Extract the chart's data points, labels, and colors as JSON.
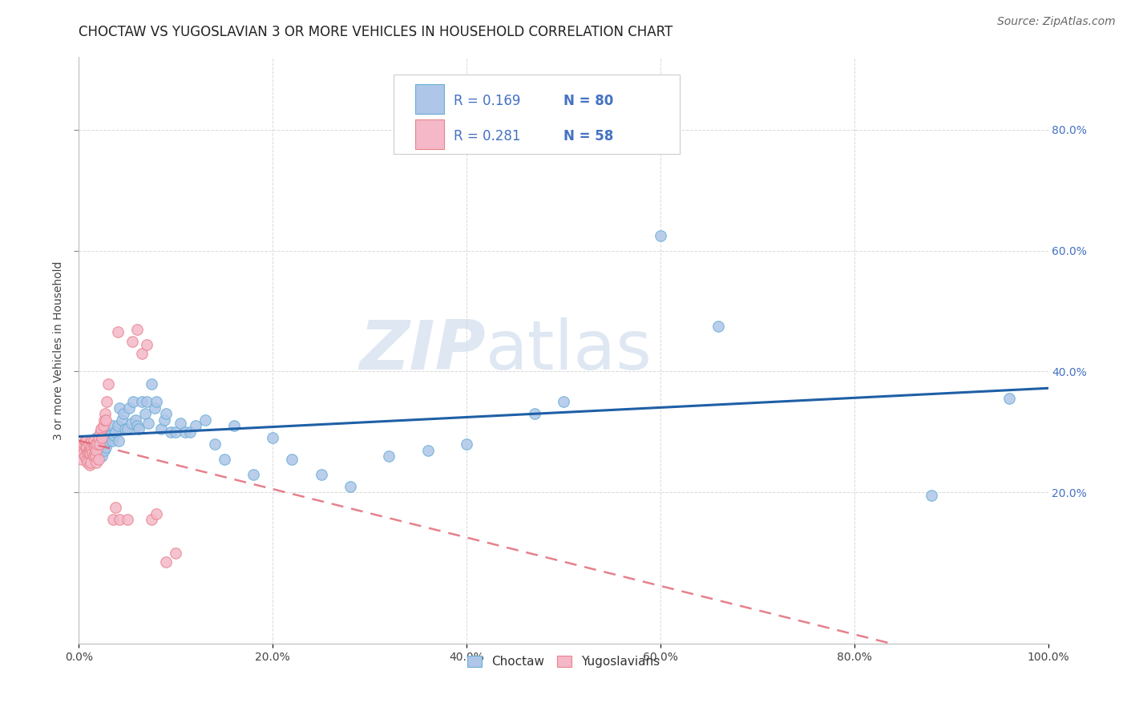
{
  "title": "CHOCTAW VS YUGOSLAVIAN 3 OR MORE VEHICLES IN HOUSEHOLD CORRELATION CHART",
  "source": "Source: ZipAtlas.com",
  "ylabel": "3 or more Vehicles in Household",
  "xlim": [
    0.0,
    1.0
  ],
  "ylim": [
    -0.05,
    0.92
  ],
  "xtick_vals": [
    0.0,
    0.2,
    0.4,
    0.6,
    0.8,
    1.0
  ],
  "xtick_labels": [
    "0.0%",
    "20.0%",
    "40.0%",
    "60.0%",
    "80.0%",
    "100.0%"
  ],
  "ytick_vals": [
    0.2,
    0.4,
    0.6,
    0.8
  ],
  "ytick_labels": [
    "20.0%",
    "40.0%",
    "60.0%",
    "80.0%"
  ],
  "choctaw_color": "#aec6e8",
  "choctaw_edge": "#6aaed6",
  "yugoslav_color": "#f4b8c8",
  "yugoslav_edge": "#e8848e",
  "trend_choctaw_color": "#1f5fa6",
  "trend_yugoslav_color": "#e06070",
  "legend_r1": "R = 0.169",
  "legend_n1": "N = 80",
  "legend_r2": "R = 0.281",
  "legend_n2": "N = 58",
  "watermark_zip": "ZIP",
  "watermark_atlas": "atlas",
  "choctaw_x": [
    0.005,
    0.008,
    0.01,
    0.012,
    0.015,
    0.015,
    0.016,
    0.018,
    0.018,
    0.02,
    0.02,
    0.021,
    0.022,
    0.023,
    0.024,
    0.024,
    0.025,
    0.025,
    0.026,
    0.026,
    0.027,
    0.028,
    0.028,
    0.029,
    0.03,
    0.03,
    0.031,
    0.032,
    0.033,
    0.034,
    0.035,
    0.036,
    0.038,
    0.04,
    0.041,
    0.042,
    0.044,
    0.046,
    0.048,
    0.05,
    0.052,
    0.054,
    0.056,
    0.058,
    0.06,
    0.062,
    0.065,
    0.068,
    0.07,
    0.072,
    0.075,
    0.078,
    0.08,
    0.085,
    0.088,
    0.09,
    0.095,
    0.1,
    0.105,
    0.11,
    0.115,
    0.12,
    0.13,
    0.14,
    0.15,
    0.16,
    0.18,
    0.2,
    0.22,
    0.25,
    0.28,
    0.32,
    0.36,
    0.4,
    0.47,
    0.5,
    0.6,
    0.66,
    0.88,
    0.96
  ],
  "choctaw_y": [
    0.27,
    0.28,
    0.26,
    0.285,
    0.275,
    0.265,
    0.255,
    0.29,
    0.27,
    0.275,
    0.265,
    0.28,
    0.29,
    0.285,
    0.275,
    0.26,
    0.295,
    0.28,
    0.285,
    0.27,
    0.29,
    0.285,
    0.275,
    0.295,
    0.3,
    0.285,
    0.295,
    0.3,
    0.295,
    0.285,
    0.31,
    0.295,
    0.3,
    0.31,
    0.285,
    0.34,
    0.32,
    0.33,
    0.305,
    0.305,
    0.34,
    0.315,
    0.35,
    0.32,
    0.31,
    0.305,
    0.35,
    0.33,
    0.35,
    0.315,
    0.38,
    0.34,
    0.35,
    0.305,
    0.32,
    0.33,
    0.3,
    0.3,
    0.315,
    0.3,
    0.3,
    0.31,
    0.32,
    0.28,
    0.255,
    0.31,
    0.23,
    0.29,
    0.255,
    0.23,
    0.21,
    0.26,
    0.27,
    0.28,
    0.33,
    0.35,
    0.625,
    0.475,
    0.195,
    0.355
  ],
  "yugoslav_x": [
    0.002,
    0.003,
    0.003,
    0.004,
    0.005,
    0.005,
    0.006,
    0.006,
    0.007,
    0.007,
    0.008,
    0.008,
    0.009,
    0.009,
    0.01,
    0.01,
    0.01,
    0.011,
    0.011,
    0.012,
    0.012,
    0.013,
    0.013,
    0.014,
    0.015,
    0.015,
    0.016,
    0.016,
    0.017,
    0.017,
    0.018,
    0.018,
    0.019,
    0.02,
    0.02,
    0.021,
    0.022,
    0.023,
    0.024,
    0.025,
    0.026,
    0.027,
    0.028,
    0.029,
    0.03,
    0.035,
    0.038,
    0.04,
    0.042,
    0.05,
    0.055,
    0.06,
    0.065,
    0.07,
    0.075,
    0.08,
    0.09,
    0.1
  ],
  "yugoslav_y": [
    0.27,
    0.265,
    0.255,
    0.275,
    0.28,
    0.265,
    0.285,
    0.26,
    0.285,
    0.275,
    0.275,
    0.255,
    0.265,
    0.25,
    0.28,
    0.27,
    0.265,
    0.265,
    0.245,
    0.275,
    0.25,
    0.285,
    0.27,
    0.265,
    0.285,
    0.26,
    0.275,
    0.265,
    0.26,
    0.28,
    0.25,
    0.27,
    0.28,
    0.29,
    0.255,
    0.28,
    0.3,
    0.305,
    0.29,
    0.31,
    0.32,
    0.33,
    0.32,
    0.35,
    0.38,
    0.155,
    0.175,
    0.465,
    0.155,
    0.155,
    0.45,
    0.47,
    0.43,
    0.445,
    0.155,
    0.165,
    0.085,
    0.1
  ],
  "background_color": "#ffffff",
  "grid_color": "#d0d0d0",
  "title_fontsize": 12,
  "axis_label_fontsize": 10,
  "tick_fontsize": 10,
  "legend_color": "#4472c4",
  "source_fontsize": 10
}
